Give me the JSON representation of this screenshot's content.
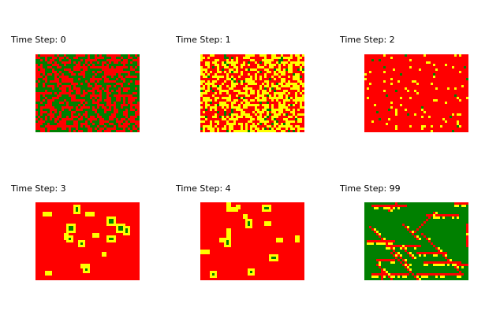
{
  "figure": {
    "colors": [
      "#008000",
      "#ff0000",
      "#ffff00"
    ],
    "panels": [
      {
        "title": "Time Step: 0"
      },
      {
        "title": "Time Step: 1"
      },
      {
        "title": "Time Step: 2"
      },
      {
        "title": "Time Step: 3"
      },
      {
        "title": "Time Step: 4"
      },
      {
        "title": "Time Step: 99"
      }
    ]
  }
}
